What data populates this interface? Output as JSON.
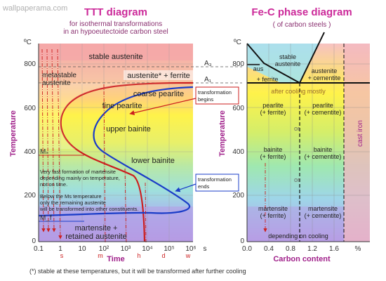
{
  "watermark": "wallpaperama.com",
  "footnote": "(*) stable at these temperatures, but it will be transformed after further cooling",
  "colors": {
    "title": "#cc2a9a",
    "subtitle": "#8a3070",
    "axis_label": "#a0208a",
    "curve_red": "#cc1e1e",
    "curve_blue": "#1a3cc8",
    "phase_line": "#111111"
  },
  "ttt": {
    "title": "TTT diagram",
    "subtitle_1": "for isothermal transformations",
    "subtitle_2": "in an hypoeutectoide carbon steel",
    "y_unit": "ºC",
    "y_label": "Temperature",
    "x_label": "Time",
    "y_ticks": [
      "800",
      "600",
      "400",
      "200",
      "0"
    ],
    "x_ticks": [
      "0.1",
      "1",
      "10",
      "10²",
      "10³",
      "10⁴",
      "10⁵",
      "10⁶"
    ],
    "x_unit": "s",
    "time_marks": [
      "s",
      "m",
      "h",
      "d",
      "w"
    ],
    "level_labels": {
      "a3": "A₃",
      "a1": "A₁",
      "ms": "Mₛ",
      "mf": "M_f"
    },
    "regions": {
      "stable_austenite": "stable austenite",
      "metastable_1": "metastable",
      "metastable_2": "austenite",
      "austenite_ferrite": "austenite* + ferrite",
      "coarse_pearlite": "coarse pearlite",
      "fine_pearlite": "fine pearlite",
      "upper_bainite": "upper bainite",
      "lower_bainite": "lower bainite",
      "martensite_1": "martensite +",
      "martensite_2": "retained austenite"
    },
    "callouts": {
      "begins_1": "transformation",
      "begins_2": "begins",
      "ends_1": "transformation",
      "ends_2": "ends"
    },
    "notes": {
      "fast_1": "Very fast formation of martensite",
      "fast_2": "depending mainly on temperature,",
      "fast_3": "not on time.",
      "ms_1": "Below the Ms temperature",
      "ms_2": "only the remaining austenite",
      "ms_3": "will be transformed into other constituents."
    }
  },
  "fec": {
    "title": "Fe-C phase diagram",
    "subtitle": "( of carbon steels )",
    "y_unit": "ºC",
    "y_label": "Temperature",
    "x_label": "Carbon content",
    "x_unit": "%",
    "y_ticks": [
      "800",
      "600",
      "400",
      "200",
      "0"
    ],
    "x_ticks": [
      "0.0",
      "0.4",
      "0.8",
      "1.2",
      "1.6"
    ],
    "regions": {
      "stable_1": "stable",
      "stable_2": "austenite",
      "aus_small": "aus",
      "plus_ferrite": "+ ferrite",
      "aus_cem_1": "austenite",
      "aus_cem_2": "+ cementite",
      "after_cooling": "after cooling mostly",
      "pearlite_l1": "pearlite",
      "pearlite_l2": "(+ ferrite)",
      "pearlite_r1": "pearlite",
      "pearlite_r2": "(+ cementite)",
      "or_1": "or",
      "bainite_l1": "bainite",
      "bainite_l2": "(+ ferrite)",
      "bainite_r1": "bainite",
      "bainite_r2": "(+ cementite)",
      "or_2": "or",
      "martensite_l1": "martensite",
      "martensite_l2": "(+ ferrite)",
      "martensite_r1": "martensite",
      "martensite_r2": "(+ cementite)",
      "depending": "depending on cooling",
      "cast_iron": "cast iron"
    }
  }
}
